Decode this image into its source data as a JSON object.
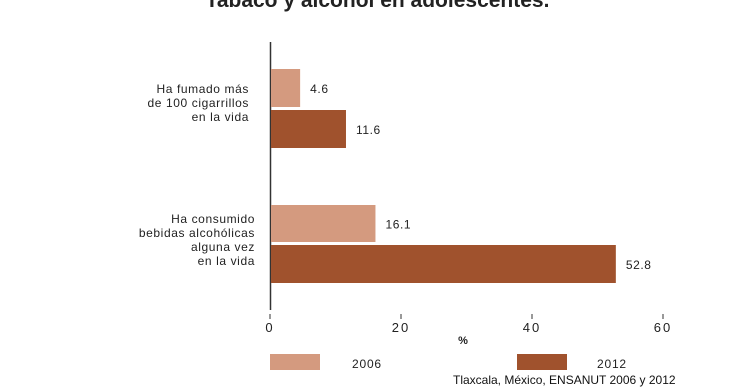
{
  "title": "Tabaco y alcohol en adolescentes.",
  "chart_data": {
    "type": "bar",
    "orientation": "horizontal",
    "categories": [
      [
        "Ha fumado más",
        "de 100 cigarrillos",
        "en la vida"
      ],
      [
        "Ha consumido",
        "bebidas alcohólicas",
        "alguna vez",
        "en la vida"
      ]
    ],
    "series": [
      {
        "name": "2006",
        "color": "#d49a7f",
        "values": [
          4.6,
          16.1
        ],
        "labels": [
          "4.6",
          "16.1"
        ]
      },
      {
        "name": "2012",
        "color": "#a0522d",
        "values": [
          11.6,
          52.8
        ],
        "labels": [
          "11.6",
          "52.8"
        ]
      }
    ],
    "xlabel": "%",
    "xlim": [
      0,
      60
    ],
    "xticks": [
      0,
      20,
      40,
      60
    ],
    "xtick_labels": [
      "0",
      "20",
      "40",
      "60"
    ],
    "grid": false,
    "legend_position": "bottom"
  },
  "source": "Tlaxcala, México, ENSANUT 2006 y 2012"
}
